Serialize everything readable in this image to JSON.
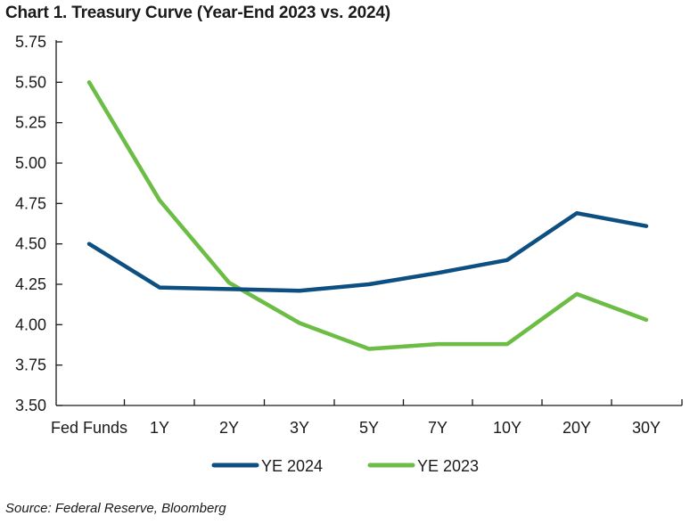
{
  "title": "Chart 1. Treasury Curve (Year-End 2023 vs. 2024)",
  "source": "Source: Federal Reserve, Bloomberg",
  "colors": {
    "YE 2024": "#0d4f80",
    "YE 2023": "#6cbd45",
    "axis": "#1a1a1a"
  },
  "chart_data": {
    "type": "line",
    "categories": [
      "Fed Funds",
      "1Y",
      "2Y",
      "3Y",
      "5Y",
      "7Y",
      "10Y",
      "20Y",
      "30Y"
    ],
    "series": [
      {
        "name": "YE 2024",
        "values": [
          4.5,
          4.23,
          4.22,
          4.21,
          4.25,
          4.32,
          4.4,
          4.69,
          4.61
        ]
      },
      {
        "name": "YE 2023",
        "values": [
          5.5,
          4.77,
          4.26,
          4.01,
          3.85,
          3.88,
          3.88,
          4.19,
          4.03
        ]
      }
    ],
    "yticks": [
      "3.50",
      "3.75",
      "4.00",
      "4.25",
      "4.50",
      "4.75",
      "5.00",
      "5.25",
      "5.50",
      "5.75"
    ],
    "ylim": [
      3.5,
      5.75
    ],
    "grid": false,
    "legend": "bottom"
  }
}
